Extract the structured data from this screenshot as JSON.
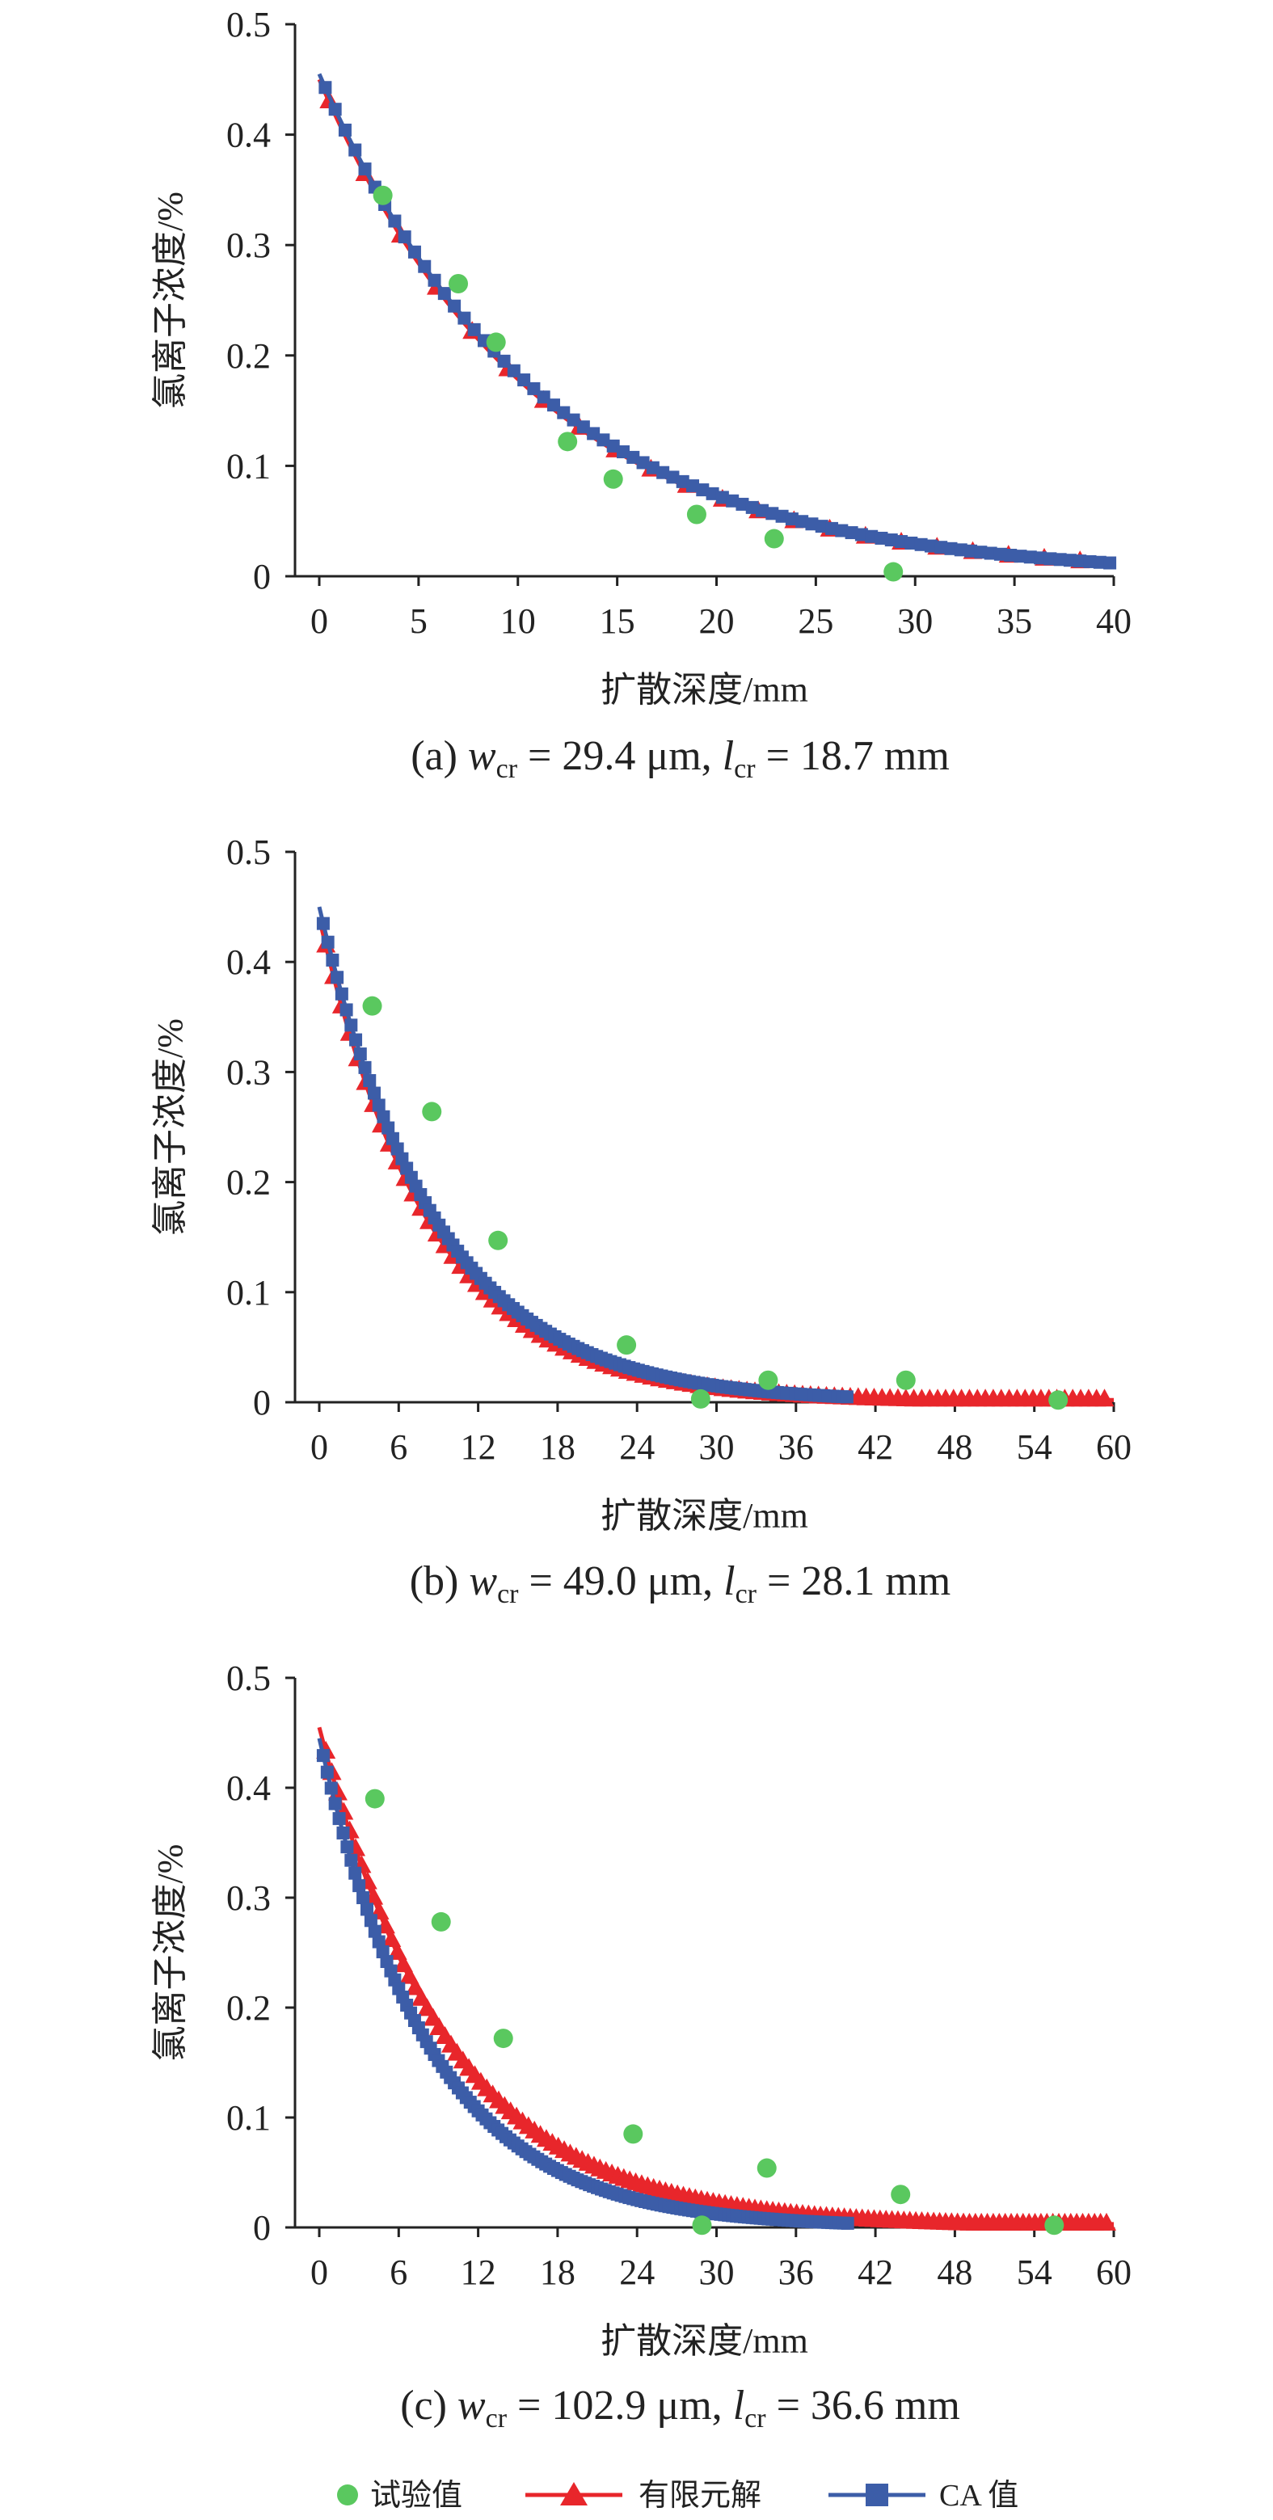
{
  "chart_data": [
    {
      "type": "scatter",
      "panel_label": "(a)",
      "caption": {
        "prefix": "(a) ",
        "w_var": "w",
        "w_sub": "cr",
        "w_value": " = 29.4 μm, ",
        "l_var": "l",
        "l_sub": "cr",
        "l_value": " = 18.7 mm"
      },
      "xlabel": "扩散深度/mm",
      "ylabel": "氯离子浓度/%",
      "xlim": [
        0,
        40
      ],
      "ylim": [
        0,
        0.5
      ],
      "xticks": [
        "0",
        "5",
        "10",
        "15",
        "20",
        "25",
        "30",
        "35",
        "40"
      ],
      "yticks": [
        "0",
        "0.1",
        "0.2",
        "0.3",
        "0.4",
        "0.5"
      ],
      "model": {
        "fem": {
          "c0": 0.45,
          "half_depth": 7.5,
          "floor": 0.003,
          "step": 1.8
        },
        "ca": {
          "c0": 0.455,
          "half_depth": 7.6,
          "floor": 0.003,
          "step": 0.5,
          "end": 40
        }
      },
      "series": [
        {
          "name": "试验值",
          "x": [
            3.2,
            7,
            8.9,
            12.5,
            14.8,
            19,
            22.9,
            28.9
          ],
          "y": [
            0.345,
            0.265,
            0.212,
            0.122,
            0.088,
            0.056,
            0.034,
            0.004
          ]
        }
      ]
    },
    {
      "type": "scatter",
      "panel_label": "(b)",
      "caption": {
        "prefix": "(b) ",
        "w_var": "w",
        "w_sub": "cr",
        "w_value": " = 49.0 μm, ",
        "l_var": "l",
        "l_sub": "cr",
        "l_value": " = 28.1 mm"
      },
      "xlabel": "扩散深度/mm",
      "ylabel": "氯离子浓度/%",
      "xlim": [
        0,
        60
      ],
      "ylim": [
        0,
        0.5
      ],
      "xticks": [
        "0",
        "6",
        "12",
        "18",
        "24",
        "30",
        "36",
        "42",
        "48",
        "54",
        "60"
      ],
      "yticks": [
        "0",
        "0.1",
        "0.2",
        "0.3",
        "0.4",
        "0.5"
      ],
      "model": {
        "fem": {
          "c0": 0.44,
          "half_depth": 5.8,
          "floor": 0.002,
          "step": 0.6
        },
        "ca": {
          "c0": 0.45,
          "half_depth": 6.1,
          "floor": 0.001,
          "step": 0.35,
          "end": 40
        }
      },
      "series": [
        {
          "name": "试验值",
          "x": [
            4,
            8.5,
            13.5,
            23.2,
            28.8,
            33.9,
            44.3,
            55.8
          ],
          "y": [
            0.36,
            0.264,
            0.147,
            0.052,
            0.003,
            0.02,
            0.02,
            0.002
          ]
        }
      ]
    },
    {
      "type": "scatter",
      "panel_label": "(c)",
      "caption": {
        "prefix": "(c) ",
        "w_var": "w",
        "w_sub": "cr",
        "w_value": " = 102.9 μm, ",
        "l_var": "l",
        "l_sub": "cr",
        "l_value": " = 36.6 mm"
      },
      "xlabel": "扩散深度/mm",
      "ylabel": "氯离子浓度/%",
      "xlim": [
        0,
        60
      ],
      "ylim": [
        0,
        0.5
      ],
      "xticks": [
        "0",
        "6",
        "12",
        "18",
        "24",
        "30",
        "36",
        "42",
        "48",
        "54",
        "60"
      ],
      "yticks": [
        "0",
        "0.1",
        "0.2",
        "0.3",
        "0.4",
        "0.5"
      ],
      "model": {
        "fem": {
          "c0": 0.455,
          "half_depth": 6.8,
          "floor": 0.003,
          "step": 0.45
        },
        "ca": {
          "c0": 0.445,
          "half_depth": 5.8,
          "floor": 0.001,
          "step": 0.3,
          "end": 40
        }
      },
      "series": [
        {
          "name": "试验值",
          "x": [
            4.2,
            9.2,
            13.9,
            23.7,
            28.9,
            33.8,
            43.9,
            55.5
          ],
          "y": [
            0.39,
            0.278,
            0.172,
            0.085,
            0.002,
            0.054,
            0.03,
            0.002
          ]
        }
      ]
    }
  ],
  "legend": [
    {
      "name": "试验值",
      "marker": "circle",
      "color": "#5ac85f"
    },
    {
      "name": "有限元解",
      "marker": "triangle",
      "color": "#e8262b"
    },
    {
      "name": "CA 值",
      "marker": "square",
      "color": "#3c5da8"
    }
  ],
  "colors": {
    "test": "#5ac85f",
    "fem": "#e8262b",
    "ca": "#3c5da8",
    "axis": "#222222"
  }
}
